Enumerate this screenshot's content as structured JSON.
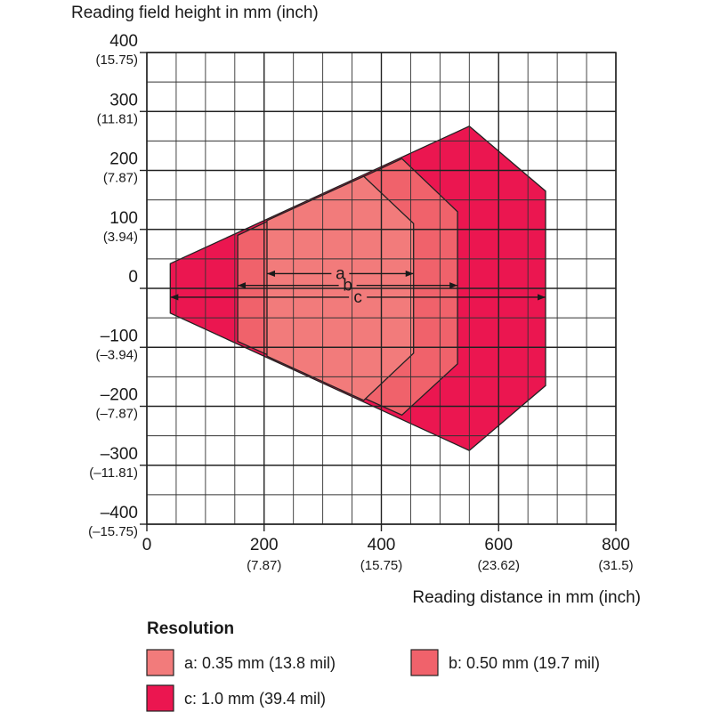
{
  "chart_data": {
    "type": "area",
    "ylabel": "Reading field height in mm (inch)",
    "xlabel": "Reading distance in mm (inch)",
    "xlim": [
      0,
      800
    ],
    "ylim": [
      -400,
      400
    ],
    "grid": true,
    "x_ticks": [
      {
        "value": 0,
        "label": "0",
        "sub": ""
      },
      {
        "value": 200,
        "label": "200",
        "sub": "(7.87)"
      },
      {
        "value": 400,
        "label": "400",
        "sub": "(15.75)"
      },
      {
        "value": 600,
        "label": "600",
        "sub": "(23.62)"
      },
      {
        "value": 800,
        "label": "800",
        "sub": "(31.5)"
      }
    ],
    "y_ticks": [
      {
        "value": 400,
        "label": "400",
        "sub": "(15.75)"
      },
      {
        "value": 300,
        "label": "300",
        "sub": "(11.81)"
      },
      {
        "value": 200,
        "label": "200",
        "sub": "(7.87)"
      },
      {
        "value": 100,
        "label": "100",
        "sub": "(3.94)"
      },
      {
        "value": 0,
        "label": "0",
        "sub": ""
      },
      {
        "value": -100,
        "label": "–100",
        "sub": "(–3.94)"
      },
      {
        "value": -200,
        "label": "–200",
        "sub": "(–7.87)"
      },
      {
        "value": -300,
        "label": "–300",
        "sub": "(–11.81)"
      },
      {
        "value": -400,
        "label": "–400",
        "sub": "(–15.75)"
      }
    ],
    "legend": {
      "title": "Resolution",
      "placement": "bottom"
    },
    "series": [
      {
        "name": "c: 1.0 mm (39.4 mil)",
        "letter": "c",
        "color": "#eb1650",
        "polygon": [
          [
            40,
            42
          ],
          [
            550,
            275
          ],
          [
            680,
            165
          ],
          [
            680,
            -165
          ],
          [
            550,
            -275
          ],
          [
            40,
            -42
          ]
        ],
        "range": [
          40,
          680
        ]
      },
      {
        "name": "b: 0.50 mm (19.7 mil)",
        "letter": "b",
        "color": "#f0626b",
        "polygon": [
          [
            155,
            90
          ],
          [
            435,
            220
          ],
          [
            530,
            130
          ],
          [
            530,
            -128
          ],
          [
            435,
            -215
          ],
          [
            155,
            -90
          ]
        ],
        "range": [
          155,
          530
        ]
      },
      {
        "name": "a: 0.35 mm (13.8 mil)",
        "letter": "a",
        "color": "#f27b7b",
        "polygon": [
          [
            205,
            115
          ],
          [
            370,
            190
          ],
          [
            455,
            110
          ],
          [
            455,
            -110
          ],
          [
            370,
            -190
          ],
          [
            205,
            -115
          ]
        ],
        "range": [
          205,
          455
        ]
      }
    ]
  }
}
